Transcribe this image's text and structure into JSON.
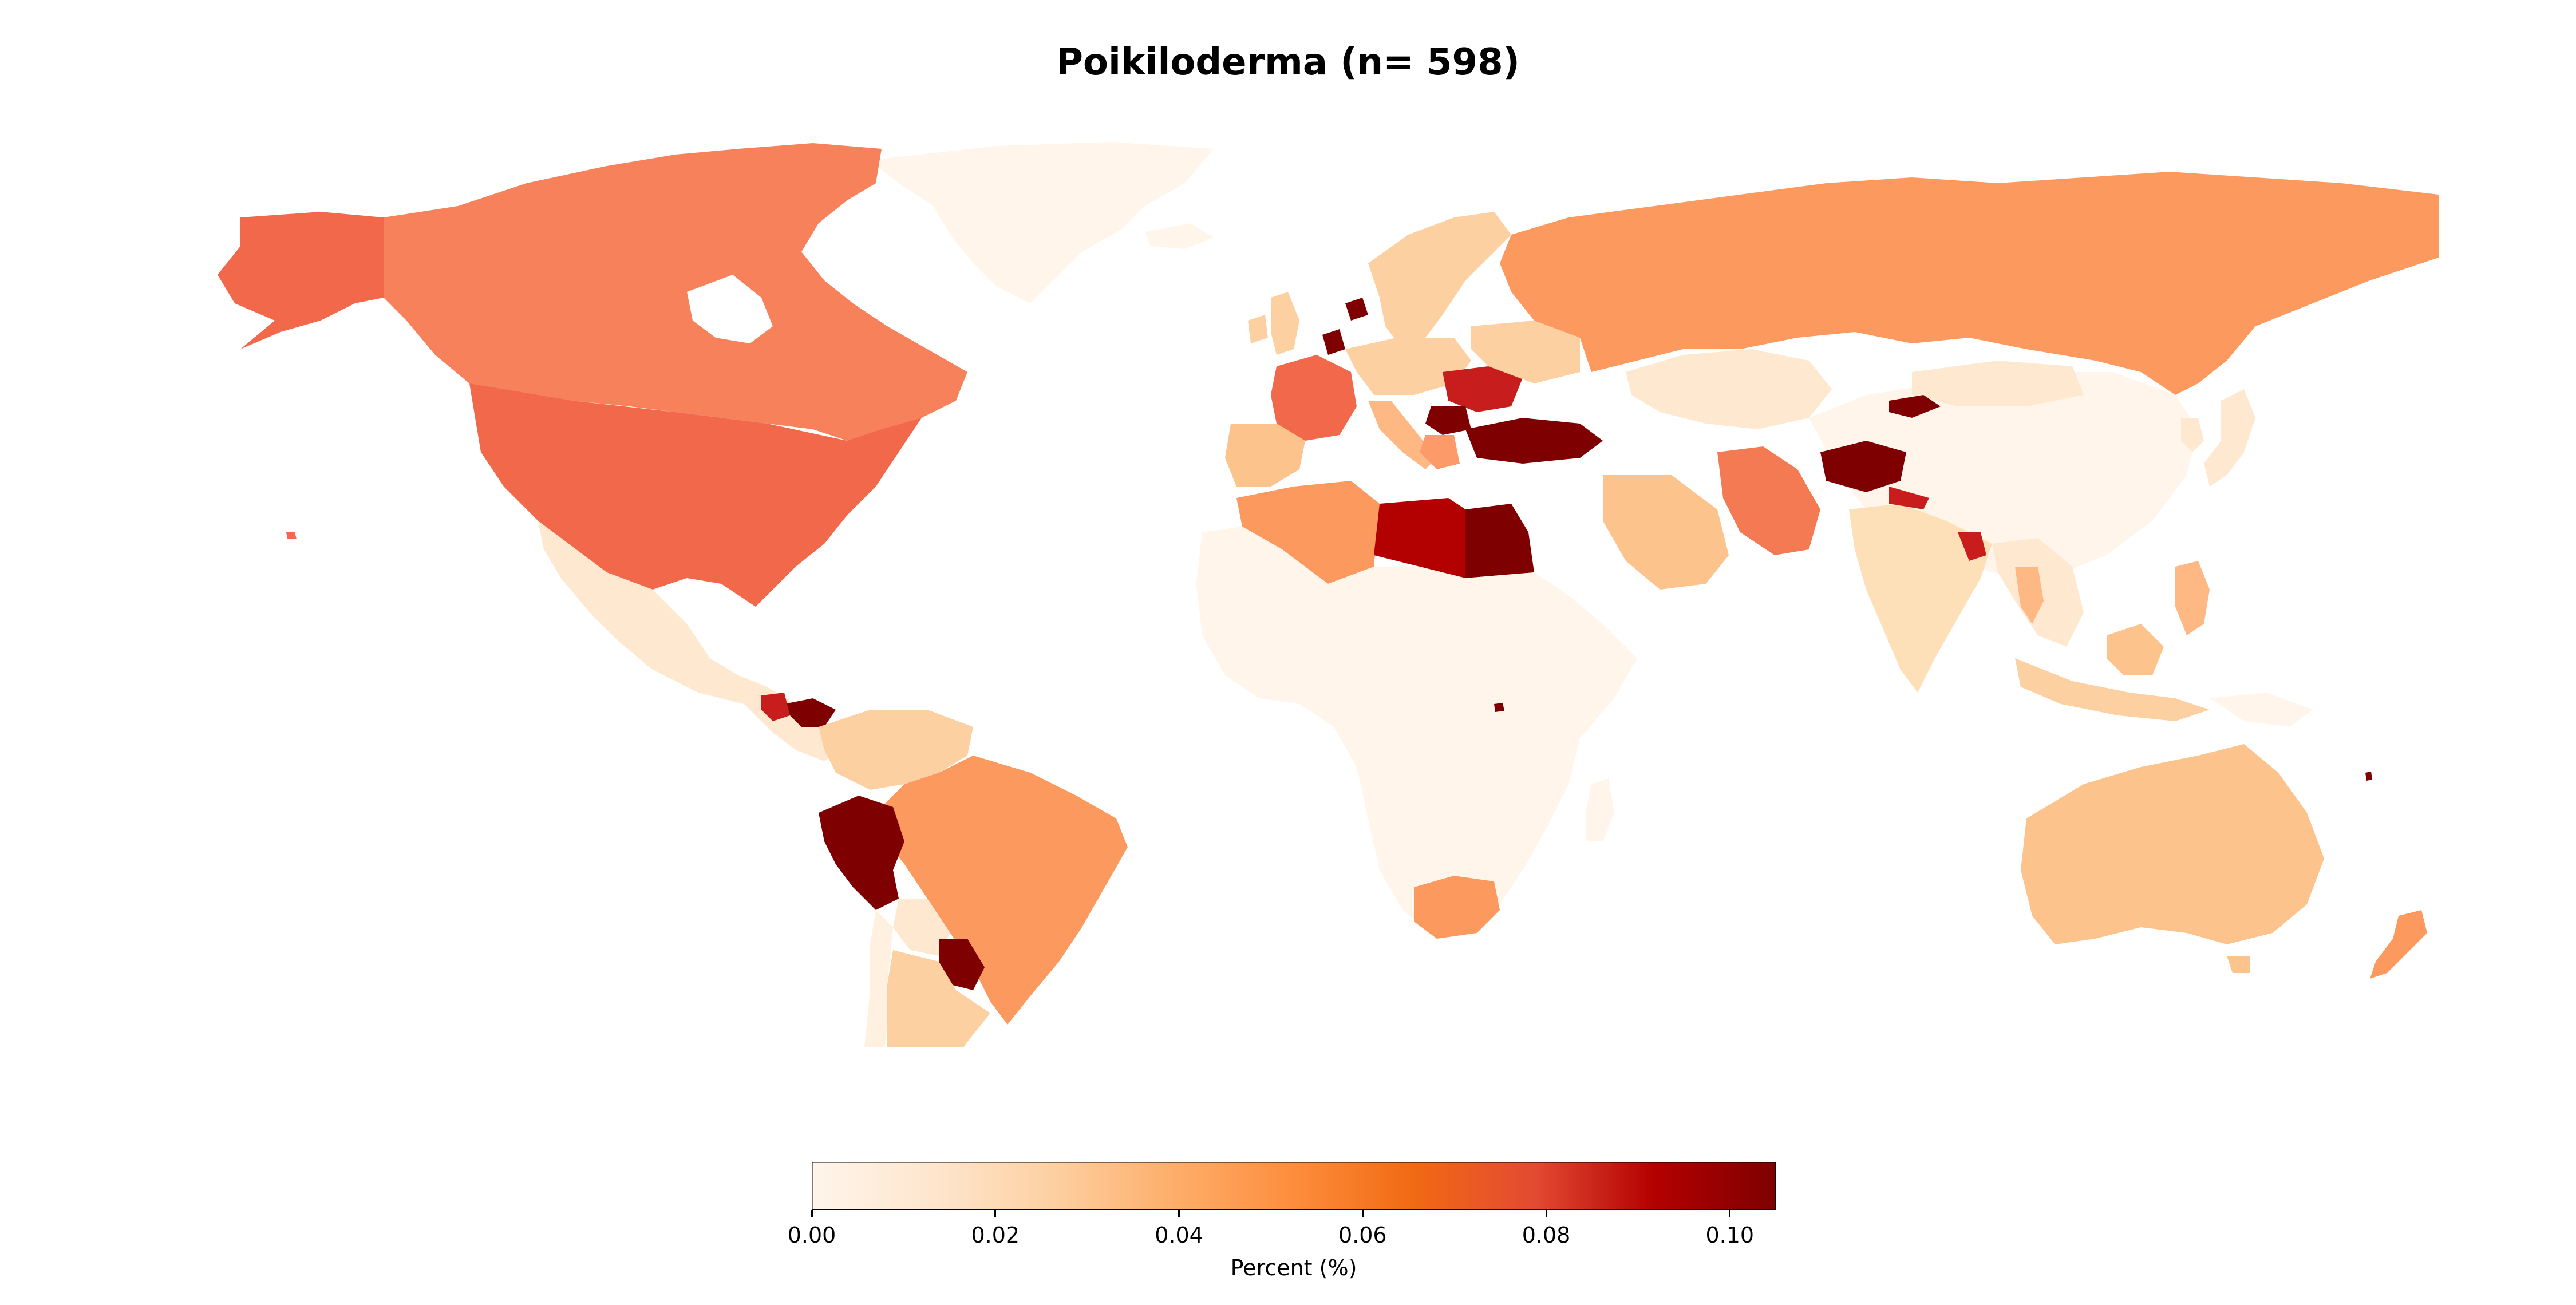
{
  "title": "Poikiloderma (n= 598)",
  "colorbar": {
    "label": "Percent (%)",
    "min": 0.0,
    "max": 0.105,
    "ticks": [
      {
        "value": 0.0,
        "label": "0.00"
      },
      {
        "value": 0.02,
        "label": "0.02"
      },
      {
        "value": 0.04,
        "label": "0.04"
      },
      {
        "value": 0.06,
        "label": "0.06"
      },
      {
        "value": 0.08,
        "label": "0.08"
      },
      {
        "value": 0.1,
        "label": "0.10"
      }
    ],
    "colormap": [
      "#fff5eb",
      "#fee6ce",
      "#fdd0a2",
      "#fdae6b",
      "#fd8d3c",
      "#f16913",
      "#e34a33",
      "#b30000",
      "#7f0000"
    ]
  },
  "colors": {
    "no_data": "#fff5eb",
    "highest": "#7f0000"
  }
}
